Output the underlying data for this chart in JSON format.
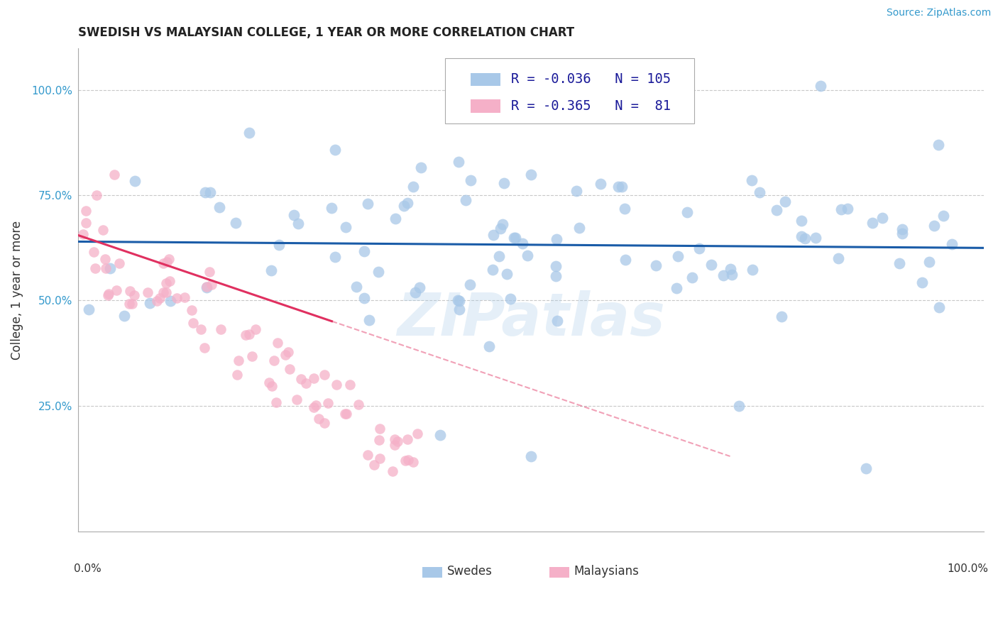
{
  "title": "SWEDISH VS MALAYSIAN COLLEGE, 1 YEAR OR MORE CORRELATION CHART",
  "source": "Source: ZipAtlas.com",
  "ylabel": "College, 1 year or more",
  "watermark": "ZIPatlas",
  "legend_swedes_label": "Swedes",
  "legend_malaysians_label": "Malaysians",
  "swedes_R": -0.036,
  "swedes_N": 105,
  "malaysians_R": -0.365,
  "malaysians_N": 81,
  "swedes_color": "#a8c8e8",
  "swedes_line_color": "#1a5ca8",
  "malaysians_color": "#f5b0c8",
  "malaysians_line_color": "#e03060",
  "background_color": "#ffffff",
  "xlim": [
    0.0,
    1.0
  ],
  "ylim": [
    -0.05,
    1.1
  ]
}
